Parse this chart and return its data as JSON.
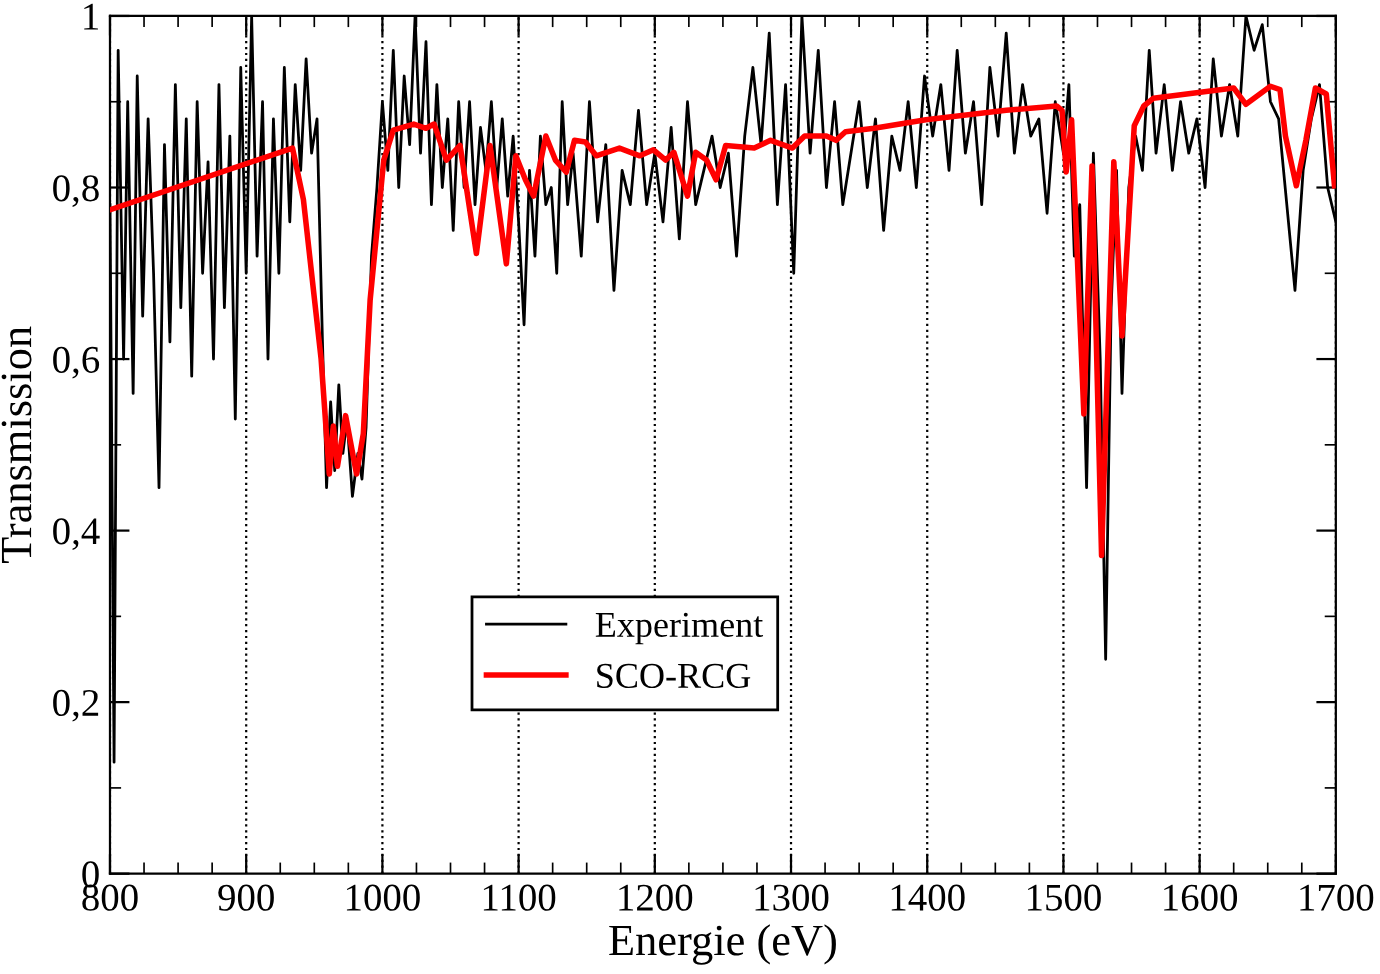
{
  "chart_data": {
    "type": "line",
    "xlabel": "Energie (eV)",
    "ylabel": "Transmission",
    "xlim": [
      800,
      1700
    ],
    "xticks": [
      800,
      900,
      1000,
      1100,
      1200,
      1300,
      1400,
      1500,
      1600,
      1700
    ],
    "ylim": [
      0,
      1
    ],
    "yticks": [
      0,
      {
        "value": 0.2,
        "label": "0,2"
      },
      {
        "value": 0.4,
        "label": "0,4"
      },
      {
        "value": 0.6,
        "label": "0,6"
      },
      {
        "value": 0.8,
        "label": "0,8"
      },
      1
    ],
    "grid": "x",
    "legend": "bottom",
    "marker": "none",
    "line_style": "solid",
    "series": [
      {
        "name": "Experiment",
        "color": "#000000",
        "x": [
          800,
          803,
          806,
          810,
          813,
          817,
          820,
          824,
          828,
          832,
          836,
          840,
          844,
          848,
          852,
          856,
          860,
          864,
          868,
          872,
          876,
          880,
          884,
          888,
          892,
          896,
          900,
          904,
          908,
          912,
          916,
          920,
          924,
          928,
          932,
          936,
          940,
          944,
          948,
          952,
          956,
          959,
          962,
          965,
          968,
          971,
          974,
          978,
          982,
          985,
          988,
          992,
          996,
          1000,
          1004,
          1008,
          1012,
          1016,
          1020,
          1024,
          1028,
          1032,
          1036,
          1040,
          1044,
          1048,
          1052,
          1056,
          1060,
          1064,
          1068,
          1072,
          1076,
          1080,
          1084,
          1088,
          1092,
          1096,
          1100,
          1104,
          1108,
          1112,
          1116,
          1120,
          1124,
          1128,
          1132,
          1136,
          1140,
          1146,
          1152,
          1158,
          1164,
          1170,
          1176,
          1182,
          1188,
          1194,
          1200,
          1206,
          1212,
          1218,
          1224,
          1230,
          1236,
          1242,
          1248,
          1254,
          1260,
          1266,
          1272,
          1278,
          1284,
          1290,
          1296,
          1302,
          1308,
          1314,
          1320,
          1326,
          1332,
          1338,
          1344,
          1350,
          1356,
          1362,
          1368,
          1374,
          1380,
          1386,
          1392,
          1398,
          1404,
          1410,
          1416,
          1422,
          1428,
          1434,
          1440,
          1446,
          1452,
          1458,
          1464,
          1470,
          1476,
          1482,
          1488,
          1494,
          1500,
          1504,
          1508,
          1512,
          1517,
          1522,
          1527,
          1531,
          1535,
          1539,
          1543,
          1548,
          1553,
          1558,
          1563,
          1568,
          1574,
          1580,
          1586,
          1592,
          1598,
          1604,
          1610,
          1616,
          1622,
          1628,
          1634,
          1640,
          1646,
          1652,
          1658,
          1664,
          1670,
          1676,
          1682,
          1688,
          1694,
          1700
        ],
        "values": [
          0.78,
          0.13,
          0.96,
          0.6,
          0.9,
          0.56,
          0.93,
          0.65,
          0.88,
          0.7,
          0.45,
          0.85,
          0.62,
          0.92,
          0.66,
          0.88,
          0.58,
          0.9,
          0.7,
          0.83,
          0.6,
          0.92,
          0.66,
          0.86,
          0.53,
          0.94,
          0.7,
          1.0,
          0.72,
          0.9,
          0.6,
          0.88,
          0.7,
          0.94,
          0.76,
          0.92,
          0.82,
          0.95,
          0.84,
          0.88,
          0.62,
          0.45,
          0.55,
          0.47,
          0.57,
          0.49,
          0.53,
          0.44,
          0.49,
          0.46,
          0.52,
          0.72,
          0.8,
          0.9,
          0.82,
          0.96,
          0.8,
          0.93,
          0.85,
          1.0,
          0.84,
          0.97,
          0.78,
          0.92,
          0.8,
          0.88,
          0.75,
          0.9,
          0.8,
          0.9,
          0.78,
          0.87,
          0.82,
          0.9,
          0.8,
          0.88,
          0.79,
          0.86,
          0.76,
          0.64,
          0.82,
          0.72,
          0.86,
          0.78,
          0.8,
          0.7,
          0.9,
          0.78,
          0.84,
          0.72,
          0.9,
          0.76,
          0.85,
          0.68,
          0.82,
          0.78,
          0.89,
          0.78,
          0.84,
          0.76,
          0.87,
          0.74,
          0.9,
          0.78,
          0.82,
          0.86,
          0.8,
          0.84,
          0.72,
          0.86,
          0.94,
          0.85,
          0.98,
          0.78,
          0.92,
          0.7,
          1.0,
          0.84,
          0.96,
          0.8,
          0.9,
          0.78,
          0.84,
          0.9,
          0.8,
          0.88,
          0.75,
          0.86,
          0.82,
          0.9,
          0.8,
          0.93,
          0.86,
          0.92,
          0.82,
          0.96,
          0.84,
          0.9,
          0.78,
          0.94,
          0.86,
          0.98,
          0.84,
          0.92,
          0.86,
          0.88,
          0.77,
          0.9,
          0.84,
          0.92,
          0.72,
          0.78,
          0.45,
          0.84,
          0.6,
          0.25,
          0.66,
          0.82,
          0.56,
          0.8,
          0.86,
          0.82,
          0.96,
          0.84,
          0.92,
          0.82,
          0.9,
          0.84,
          0.88,
          0.8,
          0.95,
          0.86,
          0.92,
          0.86,
          1.0,
          0.96,
          0.99,
          0.9,
          0.88,
          0.78,
          0.68,
          0.82,
          0.88,
          0.92,
          0.8,
          0.76
        ]
      },
      {
        "name": "SCO-RCG",
        "color": "#ff0000",
        "x": [
          800,
          934,
          942,
          955,
          961,
          964,
          967,
          973,
          981,
          986,
          991,
          1001,
          1008,
          1023,
          1032,
          1038,
          1047,
          1057,
          1069,
          1079,
          1091,
          1098,
          1105,
          1111,
          1120,
          1127,
          1135,
          1141,
          1149,
          1157,
          1174,
          1189,
          1199,
          1208,
          1214,
          1224,
          1230,
          1238,
          1245,
          1252,
          1273,
          1285,
          1301,
          1310,
          1326,
          1333,
          1340,
          1361,
          1399,
          1458,
          1495,
          1499,
          1502,
          1506,
          1515,
          1521,
          1528,
          1537,
          1543,
          1552,
          1559,
          1566,
          1625,
          1634,
          1652,
          1659,
          1663,
          1671,
          1678,
          1685,
          1693,
          1699
        ],
        "values": [
          0.774,
          0.846,
          0.786,
          0.6,
          0.466,
          0.522,
          0.475,
          0.534,
          0.466,
          0.513,
          0.669,
          0.832,
          0.867,
          0.874,
          0.869,
          0.874,
          0.832,
          0.849,
          0.723,
          0.849,
          0.711,
          0.837,
          0.809,
          0.79,
          0.86,
          0.832,
          0.818,
          0.855,
          0.853,
          0.837,
          0.846,
          0.837,
          0.844,
          0.832,
          0.841,
          0.79,
          0.841,
          0.832,
          0.809,
          0.849,
          0.846,
          0.855,
          0.846,
          0.86,
          0.86,
          0.855,
          0.865,
          0.869,
          0.879,
          0.89,
          0.895,
          0.89,
          0.818,
          0.879,
          0.536,
          0.825,
          0.371,
          0.83,
          0.627,
          0.872,
          0.895,
          0.904,
          0.916,
          0.897,
          0.918,
          0.914,
          0.86,
          0.802,
          0.855,
          0.916,
          0.909,
          0.802
        ]
      }
    ]
  }
}
